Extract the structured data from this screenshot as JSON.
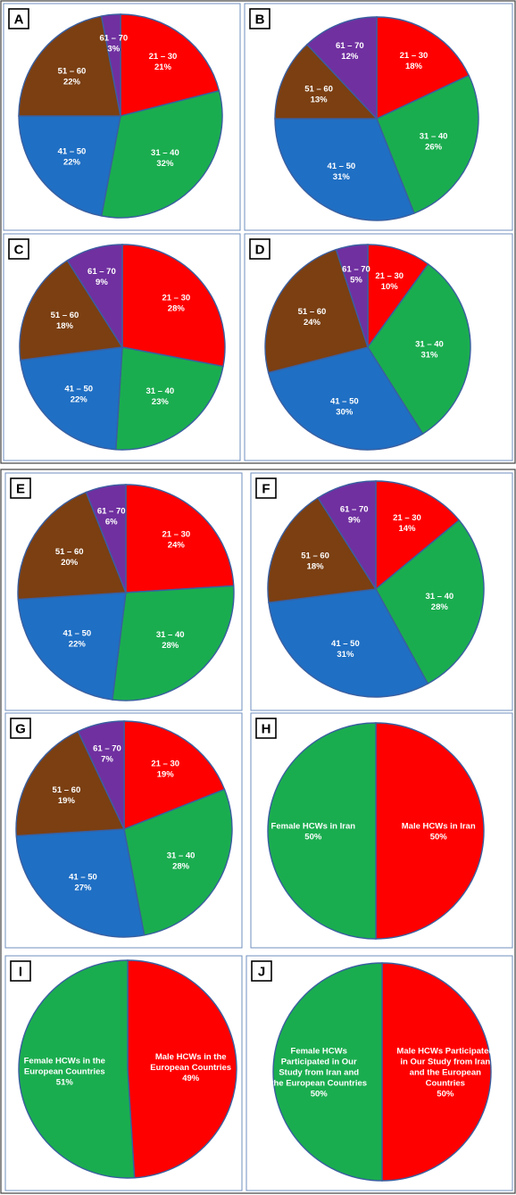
{
  "chart_data": [
    {
      "type": "pie",
      "panel": "A",
      "slices": [
        {
          "label": "21 – 30",
          "value": 21,
          "percent_label": "21%",
          "color": "#ff0000"
        },
        {
          "label": "31 – 40",
          "value": 32,
          "percent_label": "32%",
          "color": "#1aad4f"
        },
        {
          "label": "41 – 50",
          "value": 22,
          "percent_label": "22%",
          "color": "#1f6fc4"
        },
        {
          "label": "51 – 60",
          "value": 22,
          "percent_label": "22%",
          "color": "#7b3f12"
        },
        {
          "label": "61 – 70",
          "value": 3,
          "percent_label": "3%",
          "color": "#7030a0"
        }
      ]
    },
    {
      "type": "pie",
      "panel": "B",
      "slices": [
        {
          "label": "21 – 30",
          "value": 18,
          "percent_label": "18%",
          "color": "#ff0000"
        },
        {
          "label": "31 – 40",
          "value": 26,
          "percent_label": "26%",
          "color": "#1aad4f"
        },
        {
          "label": "41 – 50",
          "value": 31,
          "percent_label": "31%",
          "color": "#1f6fc4"
        },
        {
          "label": "51 – 60",
          "value": 13,
          "percent_label": "13%",
          "color": "#7b3f12"
        },
        {
          "label": "61 – 70",
          "value": 12,
          "percent_label": "12%",
          "color": "#7030a0"
        }
      ]
    },
    {
      "type": "pie",
      "panel": "C",
      "slices": [
        {
          "label": "21 – 30",
          "value": 28,
          "percent_label": "28%",
          "color": "#ff0000"
        },
        {
          "label": "31 – 40",
          "value": 23,
          "percent_label": "23%",
          "color": "#1aad4f"
        },
        {
          "label": "41 – 50",
          "value": 22,
          "percent_label": "22%",
          "color": "#1f6fc4"
        },
        {
          "label": "51 – 60",
          "value": 18,
          "percent_label": "18%",
          "color": "#7b3f12"
        },
        {
          "label": "61 – 70",
          "value": 9,
          "percent_label": "9%",
          "color": "#7030a0"
        }
      ]
    },
    {
      "type": "pie",
      "panel": "D",
      "slices": [
        {
          "label": "21 – 30",
          "value": 10,
          "percent_label": "10%",
          "color": "#ff0000"
        },
        {
          "label": "31 – 40",
          "value": 31,
          "percent_label": "31%",
          "color": "#1aad4f"
        },
        {
          "label": "41 – 50",
          "value": 30,
          "percent_label": "30%",
          "color": "#1f6fc4"
        },
        {
          "label": "51 – 60",
          "value": 24,
          "percent_label": "24%",
          "color": "#7b3f12"
        },
        {
          "label": "61 – 70",
          "value": 5,
          "percent_label": "5%",
          "color": "#7030a0"
        }
      ]
    },
    {
      "type": "pie",
      "panel": "E",
      "slices": [
        {
          "label": "21 – 30",
          "value": 24,
          "percent_label": "24%",
          "color": "#ff0000"
        },
        {
          "label": "31 – 40",
          "value": 28,
          "percent_label": "28%",
          "color": "#1aad4f"
        },
        {
          "label": "41 – 50",
          "value": 22,
          "percent_label": "22%",
          "color": "#1f6fc4"
        },
        {
          "label": "51 – 60",
          "value": 20,
          "percent_label": "20%",
          "color": "#7b3f12"
        },
        {
          "label": "61 – 70",
          "value": 6,
          "percent_label": "6%",
          "color": "#7030a0"
        }
      ]
    },
    {
      "type": "pie",
      "panel": "F",
      "slices": [
        {
          "label": "21 – 30",
          "value": 14,
          "percent_label": "14%",
          "color": "#ff0000"
        },
        {
          "label": "31 – 40",
          "value": 28,
          "percent_label": "28%",
          "color": "#1aad4f"
        },
        {
          "label": "41 – 50",
          "value": 31,
          "percent_label": "31%",
          "color": "#1f6fc4"
        },
        {
          "label": "51 – 60",
          "value": 18,
          "percent_label": "18%",
          "color": "#7b3f12"
        },
        {
          "label": "61 – 70",
          "value": 9,
          "percent_label": "9%",
          "color": "#7030a0"
        }
      ]
    },
    {
      "type": "pie",
      "panel": "G",
      "slices": [
        {
          "label": "21 – 30",
          "value": 19,
          "percent_label": "19%",
          "color": "#ff0000"
        },
        {
          "label": "31 – 40",
          "value": 28,
          "percent_label": "28%",
          "color": "#1aad4f"
        },
        {
          "label": "41 – 50",
          "value": 27,
          "percent_label": "27%",
          "color": "#1f6fc4"
        },
        {
          "label": "51 – 60",
          "value": 19,
          "percent_label": "19%",
          "color": "#7b3f12"
        },
        {
          "label": "61 – 70",
          "value": 7,
          "percent_label": "7%",
          "color": "#7030a0"
        }
      ]
    },
    {
      "type": "pie",
      "panel": "H",
      "slices": [
        {
          "label": "Male HCWs in Iran",
          "value": 50,
          "percent_label": "50%",
          "color": "#ff0000"
        },
        {
          "label": "Female HCWs in Iran",
          "value": 50,
          "percent_label": "50%",
          "color": "#1aad4f"
        }
      ]
    },
    {
      "type": "pie",
      "panel": "I",
      "slices": [
        {
          "label": "Male HCWs in the European Countries",
          "value": 49,
          "percent_label": "49%",
          "color": "#ff0000"
        },
        {
          "label": "Female HCWs in the European Countries",
          "value": 51,
          "percent_label": "51%",
          "color": "#1aad4f"
        }
      ]
    },
    {
      "type": "pie",
      "panel": "J",
      "slices": [
        {
          "label": "Male HCWs Participated in Our Study from Iran and the European Countries",
          "value": 50,
          "percent_label": "50%",
          "color": "#ff0000"
        },
        {
          "label": "Female HCWs Participated in Our Study from Iran and the European Countries",
          "value": 50,
          "percent_label": "50%",
          "color": "#1aad4f"
        }
      ]
    }
  ]
}
